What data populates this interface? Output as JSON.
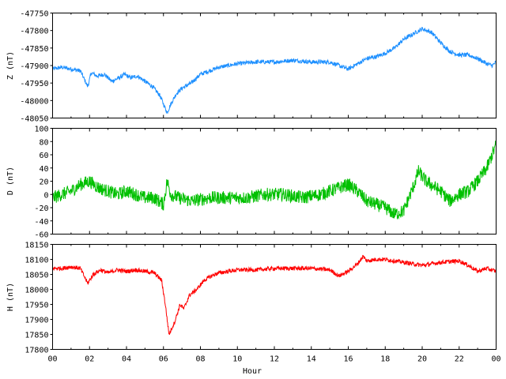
{
  "chart_data": [
    {
      "type": "line",
      "ylabel": "Z (nT)",
      "xlim": [
        0,
        24
      ],
      "ylim": [
        -48050,
        -47750
      ],
      "yticks": [
        -47750,
        -47800,
        -47850,
        -47900,
        -47950,
        -48000,
        -48050
      ],
      "color": "#1e90ff",
      "noise": 6,
      "series": [
        {
          "x": [
            0,
            0.5,
            1.0,
            1.5,
            1.9,
            2.1,
            2.4,
            2.8,
            3.2,
            3.6,
            3.9,
            4.2,
            4.6,
            5.0,
            5.4,
            5.8,
            6.0,
            6.2,
            6.4,
            6.7,
            7.0,
            7.5,
            8.0,
            8.5,
            9.0,
            9.5,
            10,
            11,
            12,
            13,
            14,
            15,
            15.5,
            16,
            16.5,
            17,
            17.5,
            18,
            18.5,
            19,
            19.5,
            20,
            20.5,
            21,
            21.5,
            22,
            22.5,
            23,
            23.5,
            23.8,
            24
          ],
          "y": [
            -47910,
            -47905,
            -47910,
            -47915,
            -47960,
            -47920,
            -47930,
            -47925,
            -47945,
            -47935,
            -47925,
            -47935,
            -47930,
            -47945,
            -47960,
            -47985,
            -48010,
            -48035,
            -48010,
            -47980,
            -47965,
            -47950,
            -47925,
            -47915,
            -47905,
            -47900,
            -47895,
            -47890,
            -47890,
            -47885,
            -47890,
            -47890,
            -47900,
            -47910,
            -47895,
            -47880,
            -47875,
            -47865,
            -47850,
            -47825,
            -47810,
            -47795,
            -47805,
            -47835,
            -47860,
            -47870,
            -47870,
            -47880,
            -47895,
            -47900,
            -47890
          ]
        }
      ]
    },
    {
      "type": "line",
      "ylabel": "D (nT)",
      "xlim": [
        0,
        24
      ],
      "ylim": [
        -60,
        100
      ],
      "yticks": [
        100,
        80,
        60,
        40,
        20,
        0,
        -20,
        -40,
        -60
      ],
      "color": "#00c000",
      "noise": 10,
      "series": [
        {
          "x": [
            0,
            0.5,
            1.0,
            1.5,
            2.0,
            2.5,
            3.0,
            3.5,
            4.0,
            4.5,
            5.0,
            5.5,
            6.0,
            6.2,
            6.4,
            6.8,
            7.5,
            8.5,
            9.5,
            10.5,
            11.5,
            12.5,
            13.5,
            14.5,
            15.5,
            16.0,
            16.5,
            17.0,
            17.5,
            18.0,
            18.5,
            19.0,
            19.5,
            19.8,
            20.2,
            21.0,
            21.5,
            22.0,
            22.5,
            23.0,
            23.5,
            24
          ],
          "y": [
            -5,
            0,
            5,
            15,
            20,
            10,
            5,
            0,
            5,
            0,
            -5,
            -5,
            -15,
            20,
            0,
            -5,
            -10,
            -5,
            -5,
            -5,
            0,
            0,
            -5,
            0,
            10,
            15,
            5,
            -10,
            -15,
            -20,
            -30,
            -25,
            10,
            35,
            20,
            5,
            -10,
            0,
            5,
            20,
            40,
            75
          ]
        }
      ]
    },
    {
      "type": "line",
      "ylabel": "H (nT)",
      "xlabel": "Hour",
      "xlim": [
        0,
        24
      ],
      "ylim": [
        17800,
        18150
      ],
      "yticks": [
        18150,
        18100,
        18050,
        18000,
        17950,
        17900,
        17850,
        17800
      ],
      "xticks": [
        "00",
        "02",
        "04",
        "06",
        "08",
        "10",
        "12",
        "14",
        "16",
        "18",
        "20",
        "22",
        "00"
      ],
      "color": "#ff0000",
      "noise": 7,
      "series": [
        {
          "x": [
            0,
            0.5,
            1.0,
            1.5,
            1.9,
            2.2,
            2.6,
            3.0,
            3.5,
            4.0,
            4.5,
            5.0,
            5.5,
            5.9,
            6.1,
            6.3,
            6.6,
            6.9,
            7.1,
            7.4,
            7.8,
            8.2,
            8.6,
            9.0,
            9.5,
            10,
            11,
            12,
            13,
            14,
            15,
            15.5,
            16,
            16.5,
            16.8,
            17.0,
            17.5,
            18,
            19,
            20,
            21,
            22,
            22.5,
            23,
            23.5,
            24
          ],
          "y": [
            18070,
            18070,
            18075,
            18070,
            18020,
            18050,
            18065,
            18055,
            18065,
            18060,
            18065,
            18060,
            18055,
            18030,
            17950,
            17850,
            17890,
            17950,
            17935,
            17980,
            18000,
            18030,
            18045,
            18055,
            18060,
            18065,
            18065,
            18070,
            18070,
            18070,
            18065,
            18045,
            18060,
            18085,
            18110,
            18095,
            18100,
            18100,
            18090,
            18080,
            18090,
            18095,
            18080,
            18060,
            18070,
            18060
          ]
        }
      ]
    }
  ]
}
